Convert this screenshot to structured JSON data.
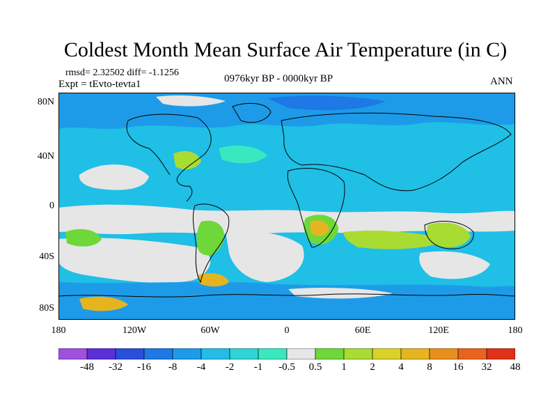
{
  "title": "Coldest Month Mean Surface Air Temperature (in C)",
  "stats": "rmsd= 2.32502 diff= -1.1256",
  "experiment": "Expt = tEvto-tevta1",
  "period": "0976kyr BP - 0000kyr BP",
  "season": "ANN",
  "lat_labels": [
    "80N",
    "40N",
    "0",
    "40S",
    "80S"
  ],
  "lon_labels": [
    "180",
    "120W",
    "60W",
    "0",
    "60E",
    "120E",
    "180"
  ],
  "colorbar": {
    "labels": [
      "-48",
      "-32",
      "-16",
      "-8",
      "-4",
      "-2",
      "-1",
      "-0.5",
      "0.5",
      "1",
      "2",
      "4",
      "8",
      "16",
      "32",
      "48"
    ],
    "colors": [
      "#a050e0",
      "#5a2fd8",
      "#2a4fd8",
      "#1e78e6",
      "#1e9be8",
      "#23bde8",
      "#2fd4d8",
      "#3ae8c0",
      "#e6e6e6",
      "#6ed83a",
      "#a8dc32",
      "#d8d228",
      "#e6b41e",
      "#e8901e",
      "#e8641e",
      "#e03218"
    ]
  },
  "map_colors": {
    "ocean_background": "#1fbfe6",
    "neutral": "#e6e6e6",
    "cool": "#3ae8c0",
    "cold": "#1e9be8",
    "colder": "#1e78e6",
    "warm_green": "#6ed83a",
    "warm_yellow": "#a8dc32",
    "warm_orange": "#e6b41e",
    "coast": "#000000"
  }
}
